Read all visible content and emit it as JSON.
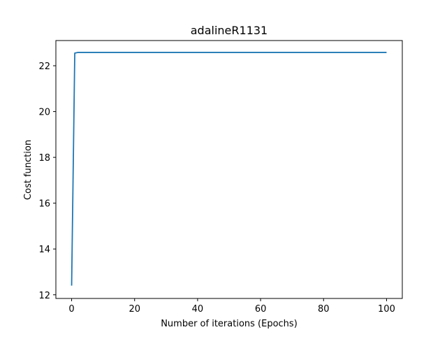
{
  "chart_data": {
    "type": "line",
    "title": "adalineR1131",
    "xlabel": "Number of iterations (Epochs)",
    "ylabel": "Cost function",
    "xlim": [
      -5,
      105
    ],
    "ylim": [
      11.84,
      23.1
    ],
    "xticks": [
      0,
      20,
      40,
      60,
      80,
      100
    ],
    "yticks": [
      12,
      14,
      16,
      18,
      20,
      22
    ],
    "grid": false,
    "line_color": "#1f77b4",
    "series": [
      {
        "x": [
          0,
          1,
          2,
          3,
          4,
          5,
          10,
          20,
          30,
          40,
          50,
          60,
          70,
          80,
          90,
          100
        ],
        "y": [
          12.4,
          22.55,
          22.58,
          22.58,
          22.58,
          22.58,
          22.58,
          22.58,
          22.58,
          22.58,
          22.58,
          22.58,
          22.58,
          22.58,
          22.58,
          22.58
        ]
      }
    ]
  }
}
